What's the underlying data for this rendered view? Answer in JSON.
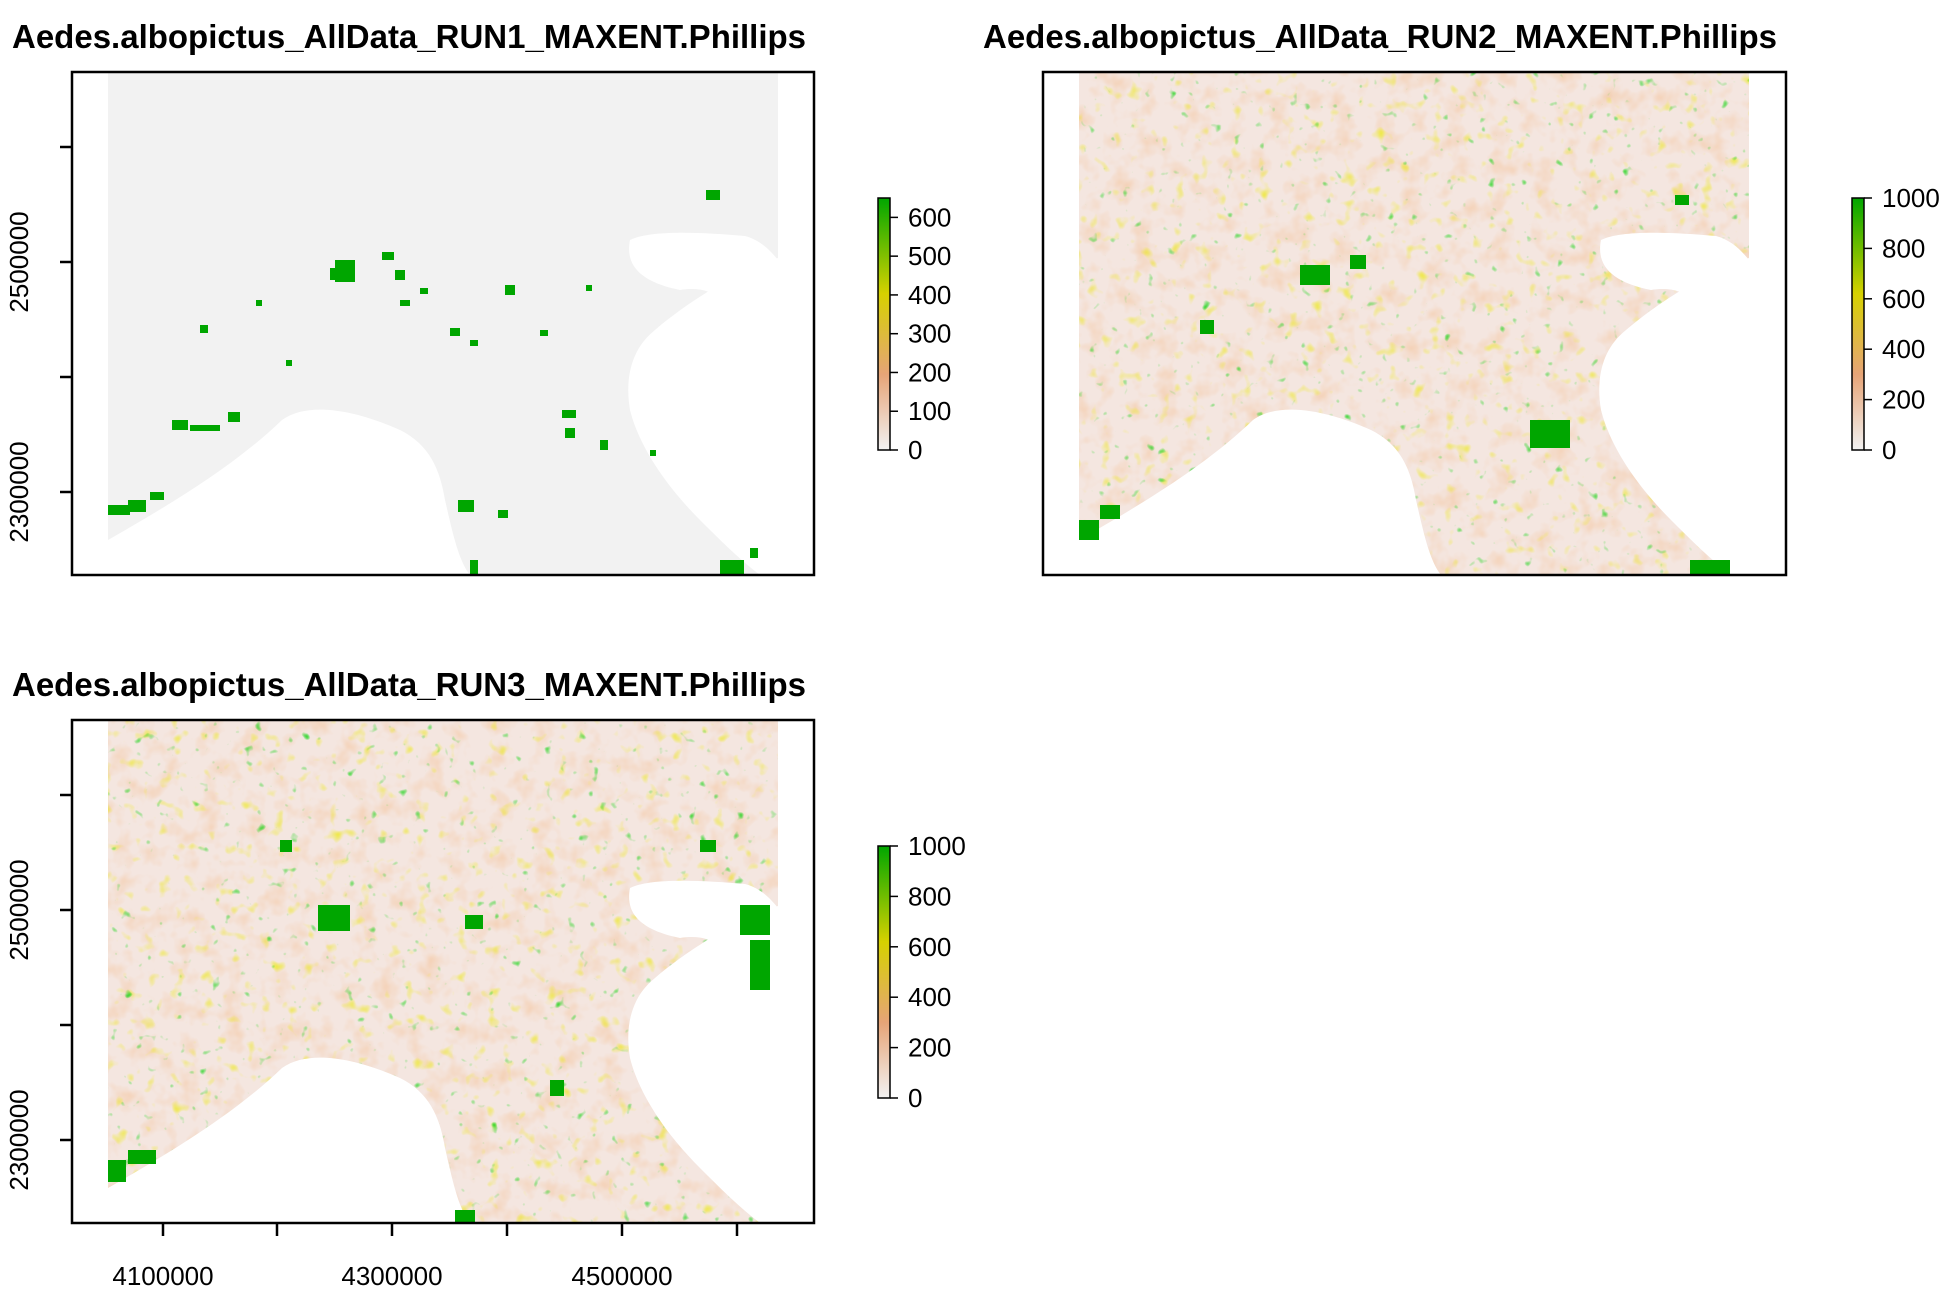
{
  "figure": {
    "panels": [
      {
        "title": "Aedes.albopictus_AllData_RUN1_MAXENT.Phillips",
        "legend_ticks": [
          "0",
          "100",
          "200",
          "300",
          "400",
          "500",
          "600"
        ],
        "legend_max": 650,
        "y_ticks": [
          "2300000",
          "2500000"
        ],
        "x_ticks": []
      },
      {
        "title": "Aedes.albopictus_AllData_RUN2_MAXENT.Phillips",
        "legend_ticks": [
          "0",
          "200",
          "400",
          "600",
          "800",
          "1000"
        ],
        "legend_max": 1000,
        "y_ticks": [],
        "x_ticks": []
      },
      {
        "title": "Aedes.albopictus_AllData_RUN3_MAXENT.Phillips",
        "legend_ticks": [
          "0",
          "200",
          "400",
          "600",
          "800",
          "1000"
        ],
        "legend_max": 1000,
        "y_ticks": [
          "2300000",
          "2500000"
        ],
        "x_ticks": [
          "4100000",
          "4300000",
          "4500000"
        ]
      }
    ],
    "colors": {
      "low": "#f2f2f2",
      "mid_low": "#e6a477",
      "mid": "#d6d100",
      "high": "#00a600",
      "water": "#ffffff",
      "frame": "#000000"
    }
  }
}
